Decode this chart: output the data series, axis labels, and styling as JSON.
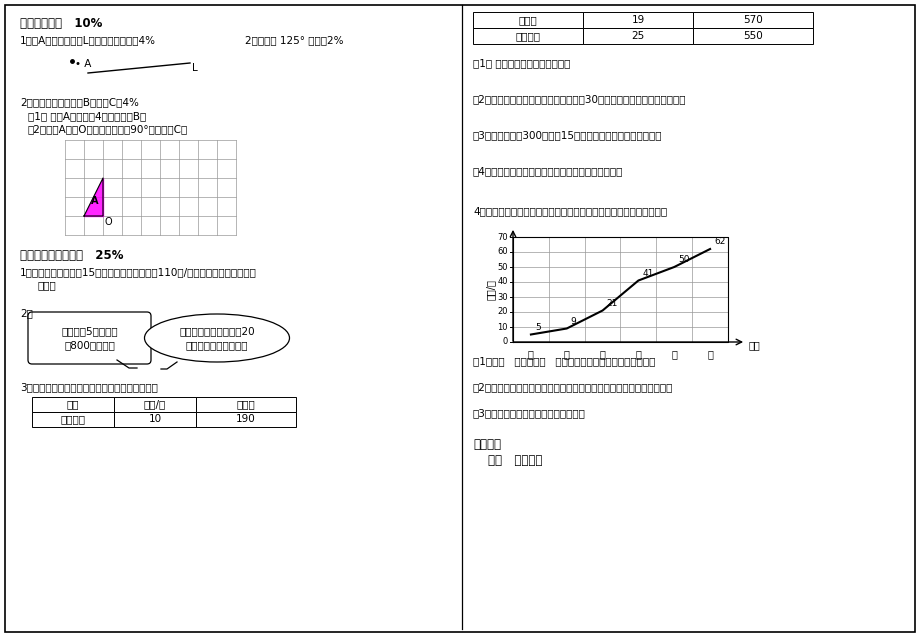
{
  "bg_color": "#ffffff",
  "section4_title": "四、我会画！   10%",
  "q4_1a": "1、过A点画已知直线L的平行线和垂线。4%",
  "q4_1b": "2、画一个 125° 的角。2%",
  "q4_2": "2、在方格上画出图形B和图形C。4%",
  "q4_2_sub1": "（1） 图形A向右平移4格得到图形B。",
  "q4_2_sub2": "（2）图形A绕点O顺时针方向旋转90°得到图形C。",
  "section5_title": "五、我会解决问题！   25%",
  "q5_1_line1": "1、淘气每天早上跑步15分钟，他的速度大约是110米/分。淘气一天大约跑步多",
  "q5_1_line2": "   少米？",
  "q5_2_label": "2、",
  "bubble1": "一只山雀5天大约能\n吃800只害虫。",
  "bubble2": "照这样计算，一只山雀20\n天约能吃多少只害虫？",
  "q5_3_intro": "3、下面是新华书店一天中销售儿童读物的情况。",
  "table1_headers": [
    "书目",
    "单价/元",
    "营业额"
  ],
  "table1_row1": [
    "故事大王",
    "10",
    "190"
  ],
  "right_table_rows": [
    [
      "连环画",
      "19",
      "570"
    ],
    [
      "童话故事",
      "25",
      "550"
    ]
  ],
  "q5_3_subs": [
    "（1） 一天中哪一种读物最畅销？",
    "（2）根据这一天的销售情况，一个月（30天）儿童读物大约销售多少本？",
    "（3）如果学校用300元购买15本《连环画》，还剩下多少元？",
    "（4）从上面的统计表中，你还能提出哪些数学问题？"
  ],
  "q5_4_intro": "4、看下面育民小学各年级戴近视镜的同学人数统计表，再回答问题。",
  "chart_ylabel": "人数/人",
  "chart_xlabel": "年级",
  "chart_grades": [
    "一",
    "二",
    "三",
    "四",
    "五",
    "六"
  ],
  "chart_values": [
    5,
    9,
    21,
    41,
    50,
    62
  ],
  "chart_yticks": [
    0,
    10,
    20,
    30,
    40,
    50,
    60,
    70
  ],
  "q5_4_subs": [
    "（1）从（   ）年级至（   ）年级，戴近视镜的同学增加最多。",
    "（2）从上图中，你能说说育民小学戴近视镜的同学人数变化的趋势吗？",
    "（3）你知道为什么会有这样的趋势吗？"
  ],
  "note_title": "命题说明",
  "note_sub": "一、   试题说明"
}
